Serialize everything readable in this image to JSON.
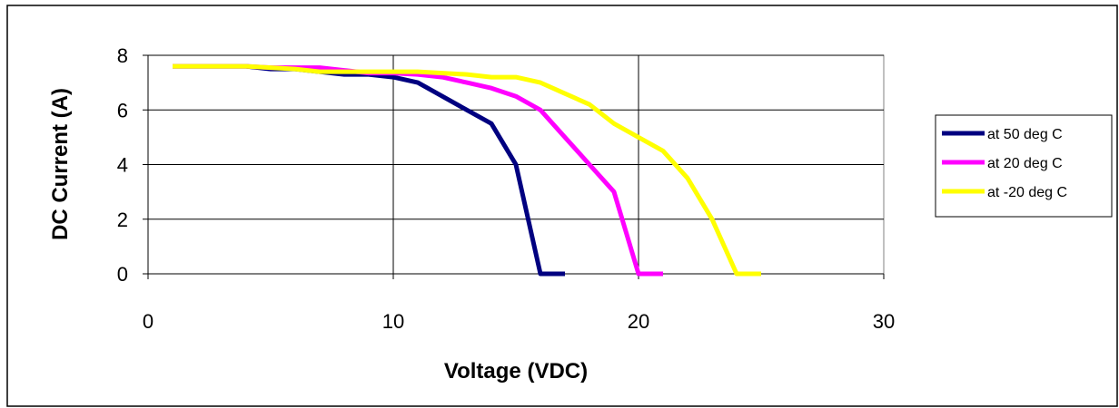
{
  "chart_data": {
    "type": "line",
    "title": "",
    "xlabel": "Voltage (VDC)",
    "ylabel": "DC Current (A)",
    "xlim": [
      0,
      30
    ],
    "ylim": [
      0,
      8
    ],
    "xticks": [
      0,
      10,
      20,
      30
    ],
    "yticks": [
      0,
      2,
      4,
      6,
      8
    ],
    "grid": true,
    "legend_position": "right",
    "series": [
      {
        "name": "at 50 deg C",
        "color": "#000080",
        "x": [
          1,
          2,
          3,
          4,
          5,
          6,
          7,
          8,
          9,
          10,
          11,
          12,
          13,
          14,
          15,
          16,
          17
        ],
        "y": [
          7.6,
          7.6,
          7.6,
          7.6,
          7.5,
          7.5,
          7.4,
          7.3,
          7.3,
          7.2,
          7.0,
          6.5,
          6.0,
          5.5,
          4.0,
          0,
          0
        ]
      },
      {
        "name": "at 20 deg C",
        "color": "#ff00ff",
        "x": [
          1,
          2,
          3,
          4,
          5,
          6,
          7,
          8,
          9,
          10,
          11,
          12,
          13,
          14,
          15,
          16,
          17,
          18,
          19,
          20,
          21
        ],
        "y": [
          7.6,
          7.6,
          7.6,
          7.6,
          7.55,
          7.55,
          7.55,
          7.45,
          7.35,
          7.35,
          7.3,
          7.2,
          7.0,
          6.8,
          6.5,
          6.0,
          5.0,
          4.0,
          3.0,
          0,
          0
        ]
      },
      {
        "name": "at -20 deg C",
        "color": "#ffff00",
        "x": [
          1,
          2,
          3,
          4,
          5,
          6,
          7,
          8,
          9,
          10,
          11,
          12,
          13,
          14,
          15,
          16,
          17,
          18,
          19,
          20,
          21,
          22,
          23,
          24,
          25
        ],
        "y": [
          7.6,
          7.6,
          7.6,
          7.6,
          7.55,
          7.5,
          7.4,
          7.4,
          7.4,
          7.4,
          7.4,
          7.35,
          7.3,
          7.2,
          7.2,
          7.0,
          6.6,
          6.2,
          5.5,
          5.0,
          4.5,
          3.5,
          2.0,
          0,
          0
        ]
      }
    ]
  }
}
